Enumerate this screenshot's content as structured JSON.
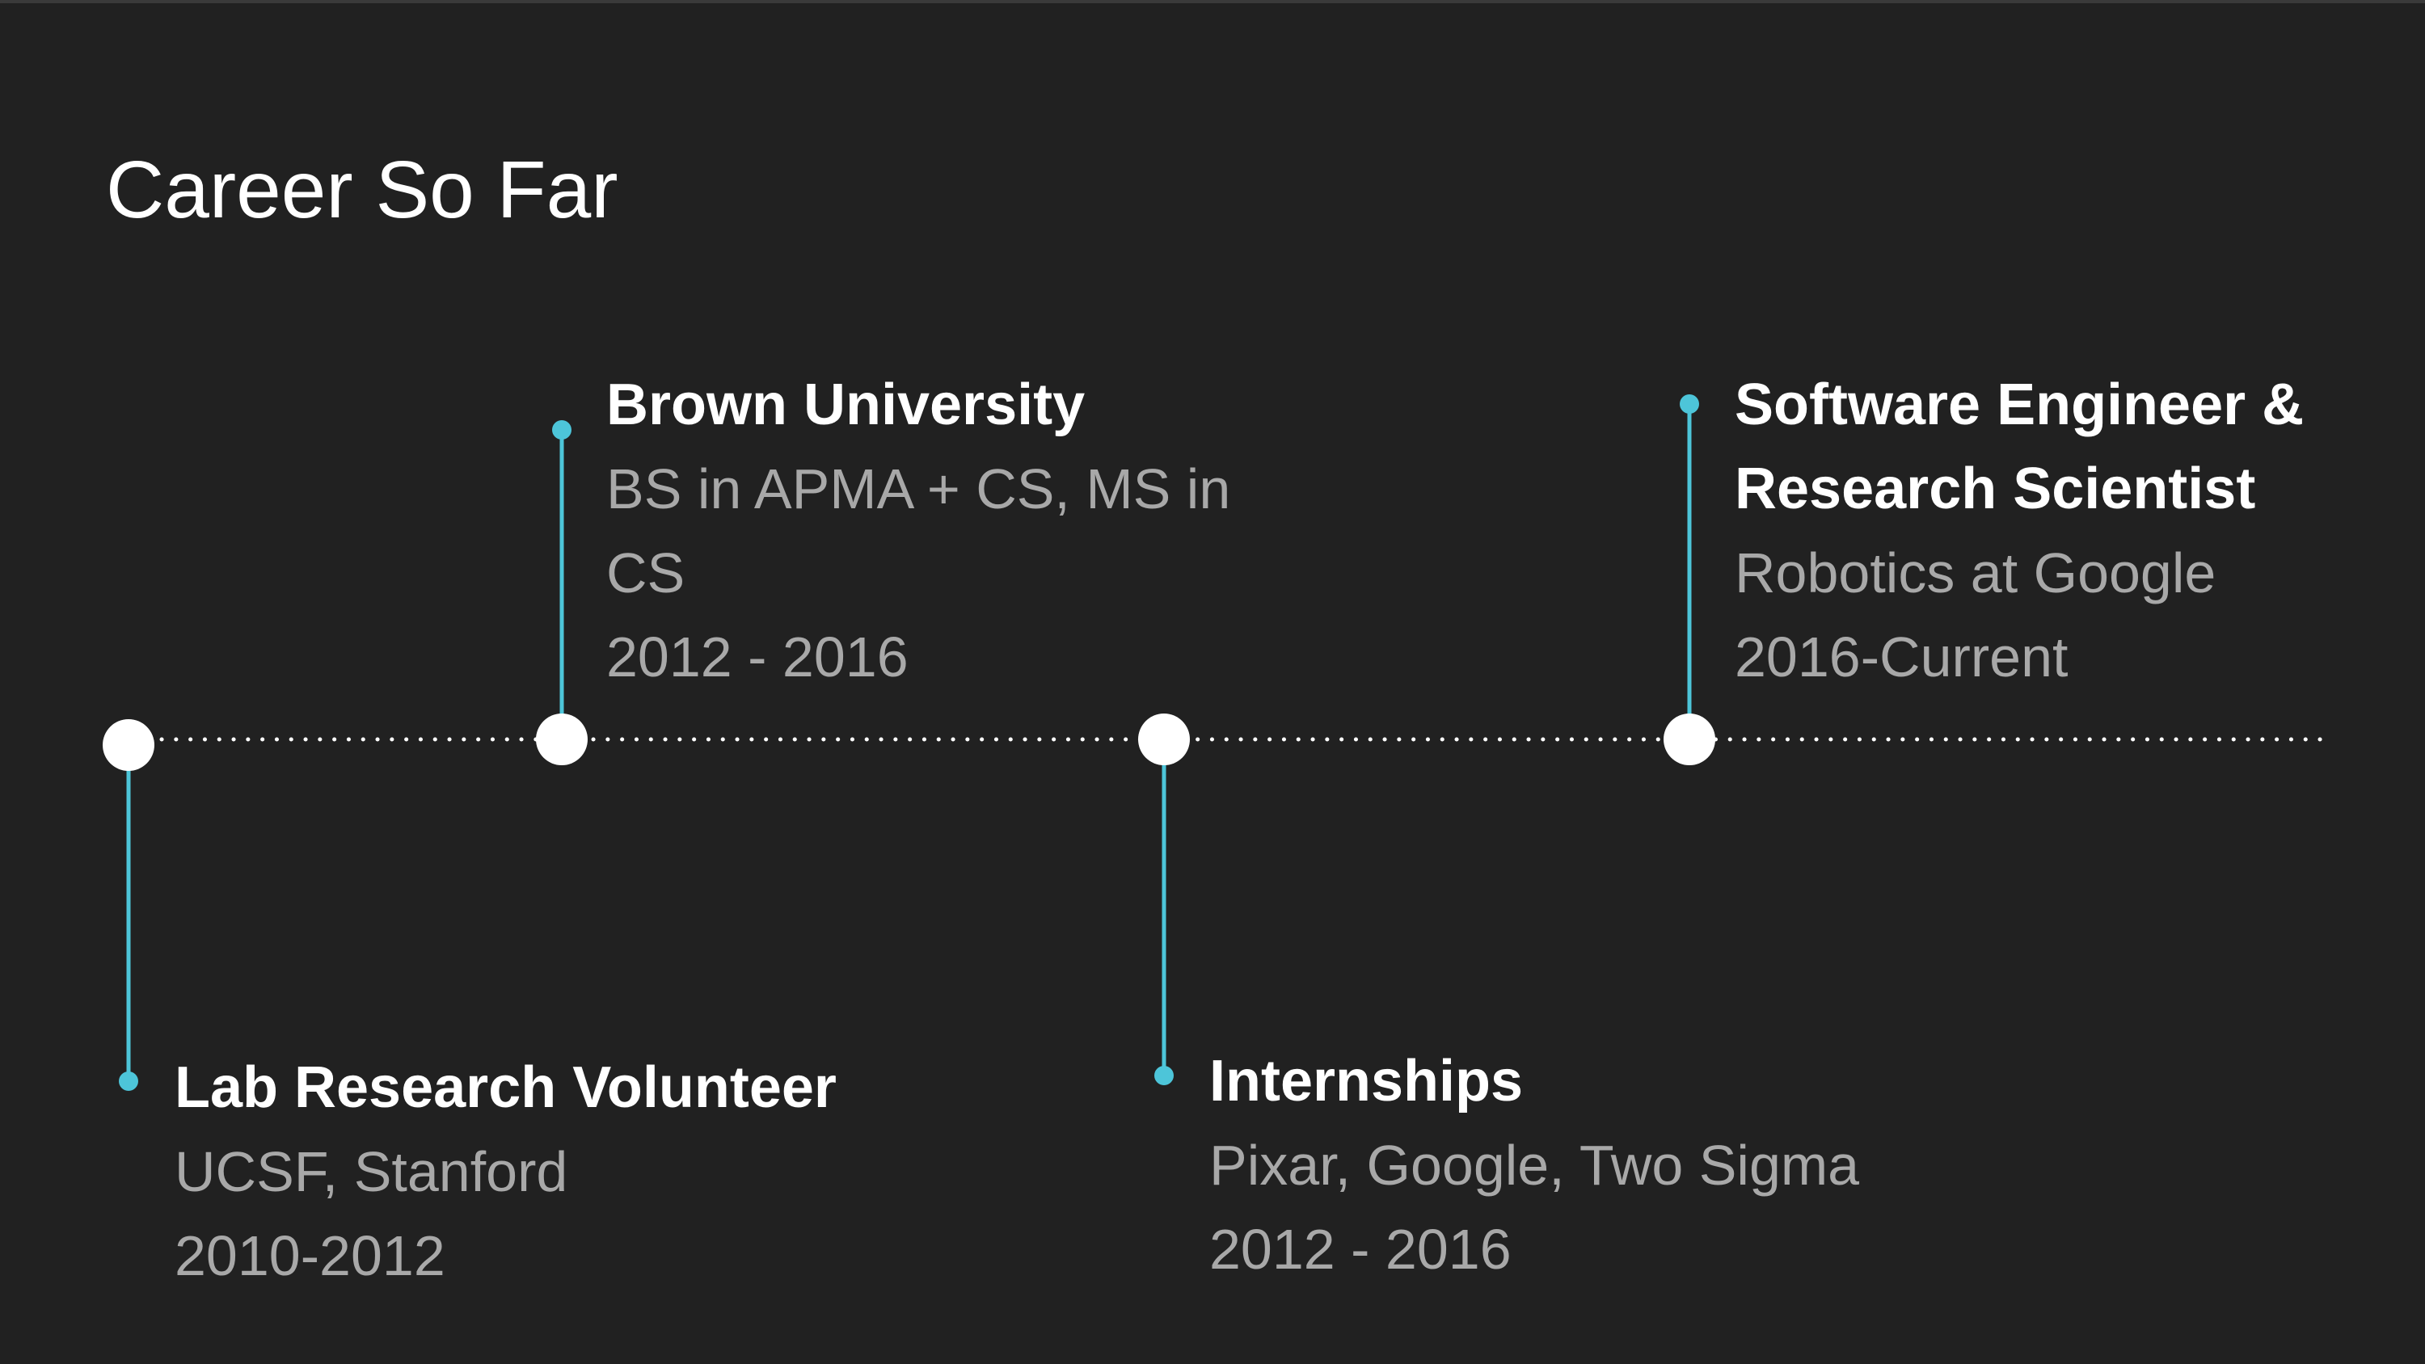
{
  "slide": {
    "title": "Career So Far"
  },
  "colors": {
    "background": "#212121",
    "text": "#ffffff",
    "subtext": "#a8a8a8",
    "accent": "#4dc5d9",
    "dots": "#ffffff"
  },
  "milestones": [
    {
      "id": "lab",
      "title": "Lab Research Volunteer",
      "lines": [
        "UCSF, Stanford",
        "2010-2012"
      ]
    },
    {
      "id": "brown",
      "title": "Brown University",
      "lines": [
        "BS in APMA + CS, MS in CS",
        "2012 - 2016"
      ]
    },
    {
      "id": "intern",
      "title": "Internships",
      "lines": [
        "Pixar, Google, Two Sigma",
        "2012 - 2016"
      ]
    },
    {
      "id": "swe",
      "title": "Software Engineer & Research Scientist",
      "lines": [
        "Robotics at Google",
        "2016-Current"
      ]
    }
  ]
}
